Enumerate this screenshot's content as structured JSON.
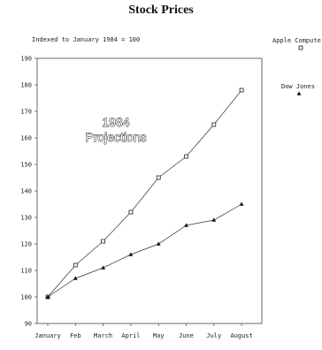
{
  "chart_data": {
    "type": "line",
    "title": "Stock Prices",
    "subtitle": "Indexed to January 1984 = 100",
    "categories": [
      "January",
      "Feb",
      "March",
      "April",
      "May",
      "June",
      "July",
      "August"
    ],
    "series": [
      {
        "name": "Apple Computer",
        "marker": "square",
        "values": [
          100,
          112,
          121,
          132,
          145,
          153,
          165,
          178
        ]
      },
      {
        "name": "Dow Jones",
        "marker": "triangle",
        "values": [
          100,
          107,
          111,
          116,
          120,
          127,
          129,
          135
        ]
      }
    ],
    "ylim": [
      90,
      190
    ],
    "yticks": [
      90,
      100,
      110,
      120,
      130,
      140,
      150,
      160,
      170,
      180,
      190
    ],
    "annotation": [
      "1984",
      "Projections"
    ],
    "legend_position": "right",
    "grid": false
  }
}
